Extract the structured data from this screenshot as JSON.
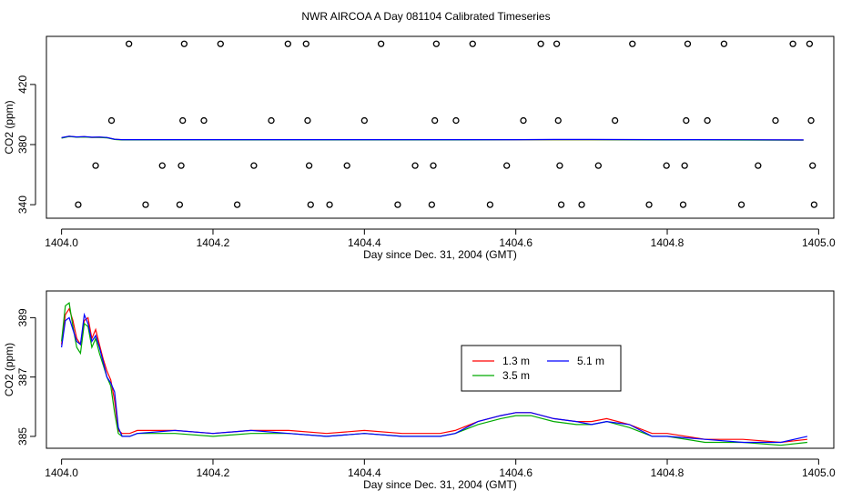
{
  "title": "NWR AIRCOA A  Day 081104  Calibrated Timeseries",
  "chart_data": [
    {
      "type": "scatter",
      "xlabel": "Day since Dec. 31, 2004 (GMT)",
      "ylabel": "CO2 (ppm)",
      "xlim": [
        1403.98,
        1405.02
      ],
      "ylim": [
        331,
        452
      ],
      "xticks": [
        1404.0,
        1404.2,
        1404.4,
        1404.6,
        1404.8,
        1405.0
      ],
      "xtick_labels": [
        "1404.0",
        "1404.2",
        "1404.4",
        "1404.6",
        "1404.8",
        "1405.0"
      ],
      "yticks": [
        340,
        380,
        420
      ],
      "ytick_labels": [
        "340",
        "380",
        "420"
      ],
      "grid": false,
      "points": [
        {
          "x": 1404.022,
          "y": 340
        },
        {
          "x": 1404.045,
          "y": 366
        },
        {
          "x": 1404.066,
          "y": 396
        },
        {
          "x": 1404.089,
          "y": 447
        },
        {
          "x": 1404.111,
          "y": 340
        },
        {
          "x": 1404.133,
          "y": 366
        },
        {
          "x": 1404.156,
          "y": 340
        },
        {
          "x": 1404.158,
          "y": 366
        },
        {
          "x": 1404.16,
          "y": 396
        },
        {
          "x": 1404.162,
          "y": 447
        },
        {
          "x": 1404.188,
          "y": 396
        },
        {
          "x": 1404.21,
          "y": 447
        },
        {
          "x": 1404.232,
          "y": 340
        },
        {
          "x": 1404.254,
          "y": 366
        },
        {
          "x": 1404.277,
          "y": 396
        },
        {
          "x": 1404.299,
          "y": 447
        },
        {
          "x": 1404.323,
          "y": 447
        },
        {
          "x": 1404.325,
          "y": 396
        },
        {
          "x": 1404.327,
          "y": 366
        },
        {
          "x": 1404.329,
          "y": 340
        },
        {
          "x": 1404.354,
          "y": 340
        },
        {
          "x": 1404.377,
          "y": 366
        },
        {
          "x": 1404.4,
          "y": 396
        },
        {
          "x": 1404.422,
          "y": 447
        },
        {
          "x": 1404.444,
          "y": 340
        },
        {
          "x": 1404.467,
          "y": 366
        },
        {
          "x": 1404.489,
          "y": 340
        },
        {
          "x": 1404.491,
          "y": 366
        },
        {
          "x": 1404.493,
          "y": 396
        },
        {
          "x": 1404.495,
          "y": 447
        },
        {
          "x": 1404.521,
          "y": 396
        },
        {
          "x": 1404.543,
          "y": 447
        },
        {
          "x": 1404.566,
          "y": 340
        },
        {
          "x": 1404.588,
          "y": 366
        },
        {
          "x": 1404.61,
          "y": 396
        },
        {
          "x": 1404.633,
          "y": 447
        },
        {
          "x": 1404.654,
          "y": 447
        },
        {
          "x": 1404.656,
          "y": 396
        },
        {
          "x": 1404.658,
          "y": 366
        },
        {
          "x": 1404.66,
          "y": 340
        },
        {
          "x": 1404.687,
          "y": 340
        },
        {
          "x": 1404.709,
          "y": 366
        },
        {
          "x": 1404.731,
          "y": 396
        },
        {
          "x": 1404.754,
          "y": 447
        },
        {
          "x": 1404.776,
          "y": 340
        },
        {
          "x": 1404.799,
          "y": 366
        },
        {
          "x": 1404.821,
          "y": 340
        },
        {
          "x": 1404.823,
          "y": 366
        },
        {
          "x": 1404.825,
          "y": 396
        },
        {
          "x": 1404.827,
          "y": 447
        },
        {
          "x": 1404.853,
          "y": 396
        },
        {
          "x": 1404.875,
          "y": 447
        },
        {
          "x": 1404.898,
          "y": 340
        },
        {
          "x": 1404.92,
          "y": 366
        },
        {
          "x": 1404.943,
          "y": 396
        },
        {
          "x": 1404.966,
          "y": 447
        },
        {
          "x": 1404.988,
          "y": 447
        },
        {
          "x": 1404.99,
          "y": 396
        },
        {
          "x": 1404.992,
          "y": 366
        },
        {
          "x": 1404.994,
          "y": 340
        }
      ],
      "series": [
        {
          "color": "#ff0000",
          "x": [
            1404.0,
            1404.01,
            1404.02,
            1404.03,
            1404.04,
            1404.05,
            1404.06,
            1404.07,
            1404.08,
            1404.1,
            1404.2,
            1404.3,
            1404.4,
            1404.5,
            1404.6,
            1404.65,
            1404.7,
            1404.8,
            1404.9,
            1404.98
          ],
          "y": [
            384.5,
            385.5,
            385,
            385.2,
            384.8,
            384.9,
            384.6,
            383.5,
            383.2,
            383.2,
            383.2,
            383.2,
            383.2,
            383.2,
            383.2,
            383.3,
            383.3,
            383.2,
            383.1,
            383
          ]
        },
        {
          "color": "#00aa00",
          "x": [
            1404.0,
            1404.01,
            1404.02,
            1404.03,
            1404.04,
            1404.05,
            1404.06,
            1404.07,
            1404.08,
            1404.1,
            1404.2,
            1404.3,
            1404.4,
            1404.5,
            1404.6,
            1404.65,
            1404.7,
            1404.8,
            1404.9,
            1404.98
          ],
          "y": [
            384.3,
            385.3,
            384.9,
            385.1,
            384.7,
            384.8,
            384.5,
            383.4,
            383.1,
            383.1,
            383.1,
            383.1,
            383.1,
            383.1,
            383.2,
            383.2,
            383.2,
            383.1,
            383,
            382.9
          ]
        },
        {
          "color": "#0000ff",
          "x": [
            1404.0,
            1404.01,
            1404.02,
            1404.03,
            1404.04,
            1404.05,
            1404.06,
            1404.07,
            1404.08,
            1404.1,
            1404.2,
            1404.3,
            1404.4,
            1404.5,
            1404.6,
            1404.65,
            1404.7,
            1404.8,
            1404.9,
            1404.98
          ],
          "y": [
            384.6,
            385.6,
            385.1,
            385.3,
            384.9,
            385,
            384.7,
            383.6,
            383.3,
            383.3,
            383.3,
            383.3,
            383.3,
            383.3,
            383.3,
            383.4,
            383.4,
            383.3,
            383.2,
            383.1
          ]
        }
      ]
    },
    {
      "type": "line",
      "xlabel": "Day since Dec. 31, 2004 (GMT)",
      "ylabel": "CO2 (ppm)",
      "xlim": [
        1403.98,
        1405.02
      ],
      "ylim": [
        384.6,
        389.9
      ],
      "xticks": [
        1404.0,
        1404.2,
        1404.4,
        1404.6,
        1404.8,
        1405.0
      ],
      "xtick_labels": [
        "1404.0",
        "1404.2",
        "1404.4",
        "1404.6",
        "1404.8",
        "1405.0"
      ],
      "yticks": [
        385,
        387,
        389
      ],
      "ytick_labels": [
        "385",
        "387",
        "389"
      ],
      "grid": false,
      "legend_position": "center-right",
      "series": [
        {
          "name": "1.3 m",
          "color": "#ff0000",
          "x": [
            1404.0,
            1404.005,
            1404.01,
            1404.015,
            1404.02,
            1404.025,
            1404.03,
            1404.035,
            1404.04,
            1404.045,
            1404.05,
            1404.055,
            1404.06,
            1404.065,
            1404.07,
            1404.075,
            1404.08,
            1404.09,
            1404.1,
            1404.15,
            1404.2,
            1404.25,
            1404.3,
            1404.35,
            1404.4,
            1404.45,
            1404.5,
            1404.52,
            1404.55,
            1404.58,
            1404.6,
            1404.62,
            1404.65,
            1404.68,
            1404.7,
            1404.72,
            1404.75,
            1404.78,
            1404.8,
            1404.85,
            1404.9,
            1404.95,
            1404.985
          ],
          "y": [
            388.1,
            389.1,
            389.3,
            388.9,
            388.3,
            388.1,
            388.9,
            389.0,
            388.3,
            388.6,
            388.1,
            387.6,
            387.2,
            386.9,
            386.2,
            385.2,
            385.1,
            385.1,
            385.2,
            385.2,
            385.1,
            385.2,
            385.2,
            385.1,
            385.2,
            385.1,
            385.1,
            385.2,
            385.5,
            385.7,
            385.8,
            385.8,
            385.6,
            385.5,
            385.5,
            385.6,
            385.4,
            385.1,
            385.1,
            384.9,
            384.9,
            384.8,
            384.9
          ]
        },
        {
          "name": "3.5 m",
          "color": "#00aa00",
          "x": [
            1404.0,
            1404.005,
            1404.01,
            1404.015,
            1404.02,
            1404.025,
            1404.03,
            1404.035,
            1404.04,
            1404.045,
            1404.05,
            1404.055,
            1404.06,
            1404.065,
            1404.07,
            1404.075,
            1404.08,
            1404.09,
            1404.1,
            1404.15,
            1404.2,
            1404.25,
            1404.3,
            1404.35,
            1404.4,
            1404.45,
            1404.5,
            1404.52,
            1404.55,
            1404.58,
            1404.6,
            1404.62,
            1404.65,
            1404.68,
            1404.7,
            1404.72,
            1404.75,
            1404.78,
            1404.8,
            1404.85,
            1404.9,
            1404.95,
            1404.985
          ],
          "y": [
            388.2,
            389.4,
            389.5,
            388.7,
            388.0,
            387.8,
            388.8,
            388.7,
            388.0,
            388.3,
            387.8,
            387.4,
            387.0,
            386.7,
            385.8,
            385.1,
            385.0,
            385.0,
            385.1,
            385.1,
            385.0,
            385.1,
            385.1,
            385.0,
            385.1,
            385.0,
            385.0,
            385.1,
            385.4,
            385.6,
            385.7,
            385.7,
            385.5,
            385.4,
            385.4,
            385.5,
            385.3,
            385.0,
            385.0,
            384.8,
            384.8,
            384.7,
            384.8
          ]
        },
        {
          "name": "5.1 m",
          "color": "#0000ff",
          "x": [
            1404.0,
            1404.005,
            1404.01,
            1404.015,
            1404.02,
            1404.025,
            1404.03,
            1404.035,
            1404.04,
            1404.045,
            1404.05,
            1404.055,
            1404.06,
            1404.065,
            1404.07,
            1404.075,
            1404.08,
            1404.09,
            1404.1,
            1404.15,
            1404.2,
            1404.25,
            1404.3,
            1404.35,
            1404.4,
            1404.45,
            1404.5,
            1404.52,
            1404.55,
            1404.58,
            1404.6,
            1404.62,
            1404.65,
            1404.68,
            1404.7,
            1404.72,
            1404.75,
            1404.78,
            1404.8,
            1404.85,
            1404.9,
            1404.95,
            1404.985
          ],
          "y": [
            388.0,
            388.9,
            389.0,
            388.6,
            388.2,
            388.1,
            389.1,
            388.8,
            388.2,
            388.4,
            388.0,
            387.5,
            387.0,
            386.8,
            386.5,
            385.3,
            385.0,
            385.0,
            385.1,
            385.2,
            385.1,
            385.2,
            385.1,
            385.0,
            385.1,
            385.0,
            385.0,
            385.1,
            385.5,
            385.7,
            385.8,
            385.8,
            385.6,
            385.5,
            385.4,
            385.5,
            385.4,
            385.0,
            385.0,
            384.9,
            384.8,
            384.8,
            385.0
          ]
        }
      ]
    }
  ]
}
